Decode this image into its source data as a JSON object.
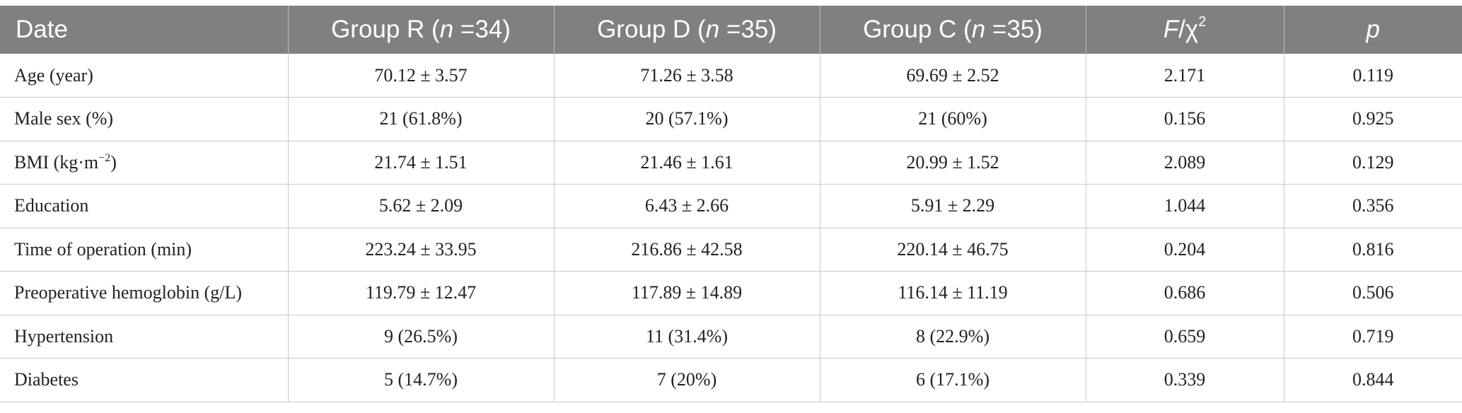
{
  "header": {
    "col0": "Date",
    "col1_prefix": "Group R (",
    "col1_var": "n",
    "col1_suffix": " =34)",
    "col2_prefix": "Group D (",
    "col2_var": "n",
    "col2_suffix": " =35)",
    "col3_prefix": "Group C (",
    "col3_var": "n",
    "col3_suffix": " =35)",
    "col4_var": "F",
    "col4_mid": "/χ",
    "col4_sup": "2",
    "col5_var": "p"
  },
  "rows": [
    {
      "label": "Age (year)",
      "r": "70.12 ± 3.57",
      "d": "71.26 ± 3.58",
      "c": "69.69 ± 2.52",
      "f": "2.171",
      "p": "0.119"
    },
    {
      "label": "Male sex (%)",
      "r": "21 (61.8%)",
      "d": "20 (57.1%)",
      "c": "21 (60%)",
      "f": "0.156",
      "p": "0.925"
    },
    {
      "label": "BMI (kg·m",
      "label_sup": "−2",
      "label_end": ")",
      "r": "21.74 ± 1.51",
      "d": "21.46 ± 1.61",
      "c": "20.99 ± 1.52",
      "f": "2.089",
      "p": "0.129"
    },
    {
      "label": "Education",
      "r": "5.62 ± 2.09",
      "d": "6.43 ± 2.66",
      "c": "5.91 ± 2.29",
      "f": "1.044",
      "p": "0.356"
    },
    {
      "label": "Time of operation (min)",
      "r": "223.24 ± 33.95",
      "d": "216.86 ± 42.58",
      "c": "220.14 ± 46.75",
      "f": "0.204",
      "p": "0.816"
    },
    {
      "label": "Preoperative hemoglobin (g/L)",
      "r": "119.79 ± 12.47",
      "d": "117.89 ± 14.89",
      "c": "116.14 ± 11.19",
      "f": "0.686",
      "p": "0.506"
    },
    {
      "label": "Hypertension",
      "r": "9 (26.5%)",
      "d": "11 (31.4%)",
      "c": "8 (22.9%)",
      "f": "0.659",
      "p": "0.719"
    },
    {
      "label": "Diabetes",
      "r": "5 (14.7%)",
      "d": "7 (20%)",
      "c": "6 (17.1%)",
      "f": "0.339",
      "p": "0.844"
    }
  ]
}
